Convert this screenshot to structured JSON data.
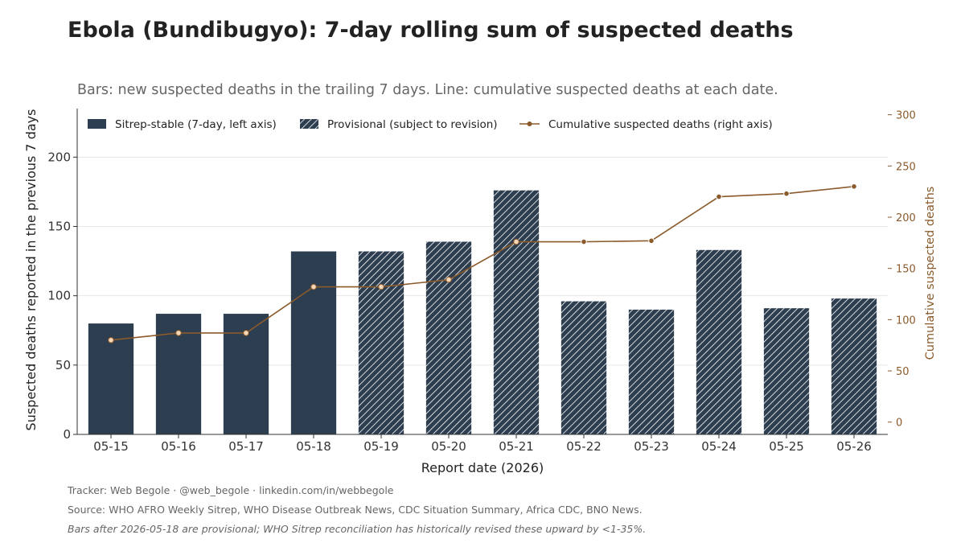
{
  "title": "Ebola (Bundibugyo): 7-day rolling sum of suspected deaths",
  "subtitle": "Bars: new suspected deaths in the trailing 7 days. Line: cumulative suspected deaths at each date.",
  "footer": {
    "line1": "Tracker: Web Begole · @web_begole · linkedin.com/in/webbegole",
    "line2": "Source: WHO AFRO Weekly Sitrep, WHO Disease Outbreak News, CDC Situation Summary, Africa CDC, BNO News.",
    "line3": "Bars after 2026-05-18 are provisional; WHO Sitrep reconciliation has historically revised these upward by <1-35%."
  },
  "colors": {
    "bar": "#2d3e50",
    "line": "#8a5a2b",
    "grid": "#e6e6e6"
  },
  "chart_data": {
    "type": "bar",
    "categories": [
      "05-15",
      "05-16",
      "05-17",
      "05-18",
      "05-19",
      "05-20",
      "05-21",
      "05-22",
      "05-23",
      "05-24",
      "05-25",
      "05-26"
    ],
    "xlabel": "Report date (2026)",
    "ylabel": "Suspected deaths reported in the previous 7 days",
    "y2label": "Cumulative suspected deaths",
    "ylim": [
      0,
      235
    ],
    "yticks": [
      0,
      50,
      100,
      150,
      200
    ],
    "y2lim": [
      -12,
      306
    ],
    "y2ticks": [
      0,
      50,
      100,
      150,
      200,
      250,
      300
    ],
    "grid": true,
    "legend_position": "top-left",
    "series": [
      {
        "name": "Sitrep-stable (7-day, left axis)",
        "kind": "bar",
        "axis": "left",
        "pattern": "solid",
        "values": [
          80,
          87,
          87,
          132,
          null,
          null,
          null,
          null,
          null,
          null,
          null,
          null
        ]
      },
      {
        "name": "Provisional (subject to revision)",
        "kind": "bar",
        "axis": "left",
        "pattern": "hatched",
        "values": [
          null,
          null,
          null,
          null,
          132,
          139,
          176,
          96,
          90,
          133,
          91,
          98
        ]
      },
      {
        "name": "Cumulative suspected deaths (right axis)",
        "kind": "line",
        "axis": "right",
        "values": [
          80,
          87,
          87,
          132,
          132,
          139,
          176,
          176,
          177,
          220,
          223,
          230
        ]
      }
    ]
  }
}
